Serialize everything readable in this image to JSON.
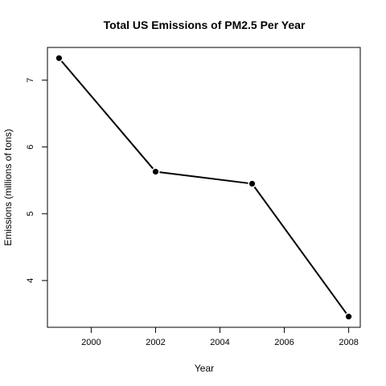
{
  "chart_data": {
    "type": "line",
    "title": "Total US Emissions of PM2.5 Per Year",
    "xlabel": "Year",
    "ylabel": "Emissions (millions of tons)",
    "x": [
      1999,
      2002,
      2005,
      2008
    ],
    "y": [
      7.33,
      5.63,
      5.45,
      3.46
    ],
    "xlim": [
      1998.64,
      2008.36
    ],
    "ylim": [
      3.3,
      7.49
    ],
    "xticks": [
      2000,
      2002,
      2004,
      2006,
      2008
    ],
    "yticks": [
      4,
      5,
      6,
      7
    ],
    "xtick_labels": [
      "2000",
      "2002",
      "2004",
      "2006",
      "2008"
    ],
    "ytick_labels": [
      "4",
      "5",
      "6",
      "7"
    ],
    "marker": "filled-circle",
    "line_color": "#000000",
    "grid": false,
    "legend": false
  }
}
